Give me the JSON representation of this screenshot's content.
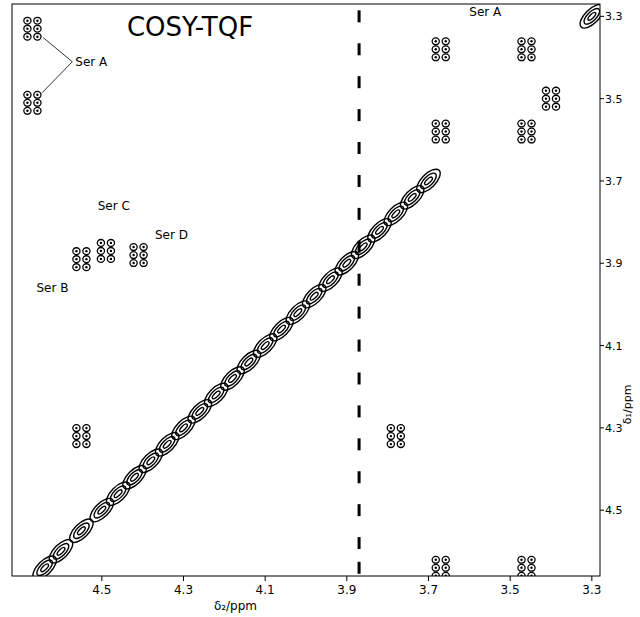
{
  "chart_data": {
    "type": "contour",
    "title": "COSY-TQF",
    "x_label": "δ₂/ppm",
    "y_label": "δ₁/ppm",
    "xlim": [
      4.72,
      3.28
    ],
    "ylim": [
      3.27,
      4.66
    ],
    "xticks": [
      4.5,
      4.3,
      4.1,
      3.9,
      3.7,
      3.5,
      3.3
    ],
    "yticks": [
      3.3,
      3.5,
      3.7,
      3.9,
      4.1,
      4.3,
      4.5
    ],
    "grid": false,
    "series": [
      {
        "type": "cross_peak",
        "color": "#000000",
        "x": [
          4.67,
          4.67,
          3.67,
          3.46,
          3.4,
          3.67,
          3.46,
          3.67,
          3.46,
          4.55,
          4.49,
          4.41,
          3.78,
          4.55
        ],
        "values": [
          3.33,
          3.51,
          3.38,
          3.38,
          3.5,
          3.58,
          3.58,
          4.64,
          4.64,
          3.89,
          3.87,
          3.88,
          4.32,
          4.32
        ]
      },
      {
        "type": "diagonal",
        "color": "#000000",
        "x": [
          4.64,
          4.6,
          4.55,
          4.5,
          4.46,
          4.42,
          4.38,
          4.34,
          4.3,
          4.26,
          4.22,
          4.18,
          4.14,
          4.1,
          4.06,
          4.02,
          3.98,
          3.94,
          3.9,
          3.86,
          3.82,
          3.78,
          3.74,
          3.7,
          3.3
        ],
        "values": [
          4.64,
          4.6,
          4.55,
          4.5,
          4.46,
          4.42,
          4.38,
          4.34,
          4.3,
          4.26,
          4.22,
          4.18,
          4.14,
          4.1,
          4.06,
          4.02,
          3.98,
          3.94,
          3.9,
          3.86,
          3.82,
          3.78,
          3.74,
          3.7,
          3.3
        ]
      },
      {
        "type": "t1_noise",
        "color": "#000000",
        "x": [
          3.87,
          3.87,
          3.87,
          3.87,
          3.87,
          3.87,
          3.87,
          3.87,
          3.87,
          3.87,
          3.87,
          3.87,
          3.87,
          3.87,
          3.87,
          3.87,
          3.87,
          3.87
        ],
        "values": [
          3.3,
          3.38,
          3.46,
          3.54,
          3.62,
          3.7,
          3.78,
          3.86,
          3.94,
          4.02,
          4.1,
          4.18,
          4.26,
          4.34,
          4.42,
          4.5,
          4.58,
          4.64
        ]
      }
    ],
    "annotations": [
      {
        "text": "Ser A",
        "x": 4.565,
        "y": 3.42
      },
      {
        "text": "Ser A",
        "x": 3.6,
        "y": 3.3
      },
      {
        "text": "Ser B",
        "x": 4.66,
        "y": 3.97
      },
      {
        "text": "Ser C",
        "x": 4.51,
        "y": 3.77
      },
      {
        "text": "Ser D",
        "x": 4.37,
        "y": 3.84
      }
    ]
  }
}
